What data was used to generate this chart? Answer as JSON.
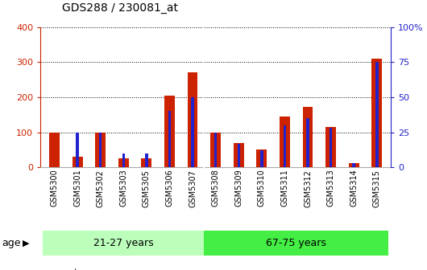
{
  "title": "GDS288 / 230081_at",
  "samples": [
    "GSM5300",
    "GSM5301",
    "GSM5302",
    "GSM5303",
    "GSM5305",
    "GSM5306",
    "GSM5307",
    "GSM5308",
    "GSM5309",
    "GSM5310",
    "GSM5311",
    "GSM5312",
    "GSM5313",
    "GSM5314",
    "GSM5315"
  ],
  "count": [
    100,
    30,
    100,
    25,
    25,
    205,
    270,
    100,
    70,
    50,
    145,
    172,
    115,
    12,
    310
  ],
  "percentile": [
    0,
    25,
    25,
    10,
    10,
    40,
    50,
    25,
    17,
    12,
    30,
    35,
    28,
    3,
    75
  ],
  "group1_label": "21-27 years",
  "group2_label": "67-75 years",
  "group1_n": 7,
  "group2_n": 8,
  "group1_color": "#bbffbb",
  "group2_color": "#44ee44",
  "count_color": "#cc2200",
  "percentile_color": "#2222cc",
  "plot_bg": "#ffffff",
  "tick_bg": "#d8d8d8",
  "ylim_left": [
    0,
    400
  ],
  "ylim_right": [
    0,
    100
  ],
  "y_ticks_left": [
    0,
    100,
    200,
    300,
    400
  ],
  "y_ticks_right": [
    0,
    25,
    50,
    75,
    100
  ],
  "count_bar_width": 0.45,
  "pct_bar_width": 0.12
}
